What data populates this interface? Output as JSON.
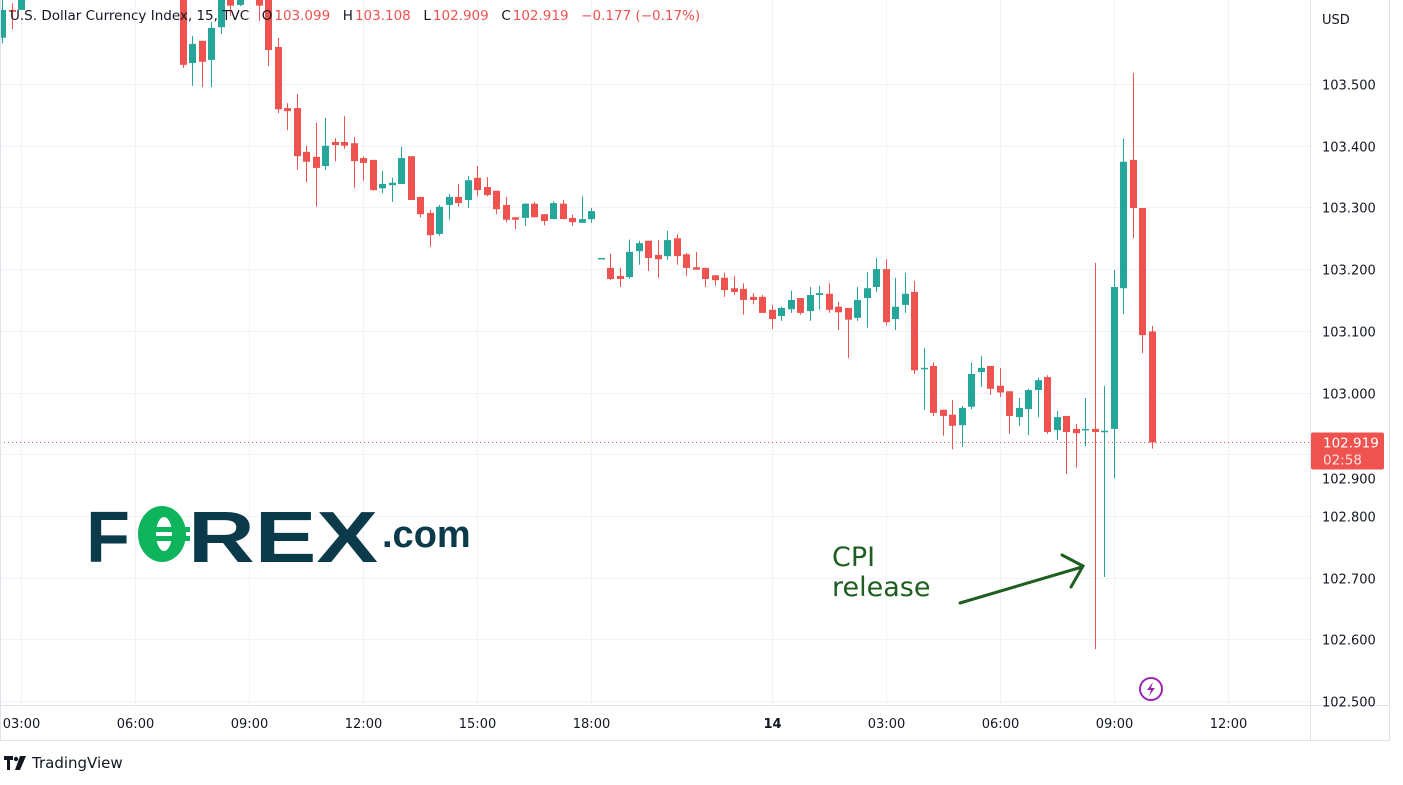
{
  "legend": {
    "symbol": "U.S. Dollar Currency Index, 15, TVC",
    "o_label": "O",
    "o": "103.099",
    "h_label": "H",
    "h": "103.108",
    "l_label": "L",
    "l": "102.909",
    "c_label": "C",
    "c": "102.919",
    "change": "−0.177 (−0.17%)"
  },
  "price_axis": {
    "currency": "USD",
    "last_price": "102.919",
    "countdown": "02:58"
  },
  "annotation": {
    "line1": "CPI",
    "line2": "release"
  },
  "logo_text": "FOREX.com",
  "attribution": "TradingView",
  "icons": {
    "event": "lightning-icon",
    "brand": "tradingview-logo-icon"
  },
  "colors": {
    "up": "#26a69a",
    "down": "#ef5350",
    "annotation": "#1e5e20",
    "logo_dark": "#0b3a4b",
    "logo_green": "#0db45c",
    "event": "#9c27b0"
  },
  "chart_data": {
    "type": "candlestick",
    "interval": "15",
    "ylim": [
      102.49,
      103.63
    ],
    "y_ticks": [
      102.5,
      102.6,
      102.7,
      102.8,
      102.9,
      103.0,
      103.1,
      103.2,
      103.3,
      103.4,
      103.5
    ],
    "x_ticks": [
      {
        "label": "03:00",
        "t": "13 03:00"
      },
      {
        "label": "06:00",
        "t": "13 06:00"
      },
      {
        "label": "09:00",
        "t": "13 09:00"
      },
      {
        "label": "12:00",
        "t": "13 12:00"
      },
      {
        "label": "15:00",
        "t": "13 15:00"
      },
      {
        "label": "18:00",
        "t": "13 18:00"
      },
      {
        "label": "14",
        "t": "14 00:00"
      },
      {
        "label": "03:00",
        "t": "14 03:00"
      },
      {
        "label": "06:00",
        "t": "14 06:00"
      },
      {
        "label": "09:00",
        "t": "14 09:00"
      },
      {
        "label": "12:00",
        "t": "14 12:00"
      }
    ],
    "grid": true,
    "last_price": 102.919,
    "event_marker_time": "14 09:45",
    "candles_fields": [
      "time",
      "open",
      "high",
      "low",
      "close"
    ],
    "candles": [
      [
        "13 02:30",
        103.575,
        103.64,
        103.566,
        103.62
      ],
      [
        "13 02:45",
        103.62,
        103.631,
        103.589,
        103.617
      ],
      [
        "13 03:00",
        103.62,
        103.66,
        103.62,
        103.65
      ],
      [
        "13 07:15",
        103.66,
        103.67,
        103.526,
        103.531
      ],
      [
        "13 07:30",
        103.534,
        103.578,
        103.497,
        103.565
      ],
      [
        "13 07:45",
        103.57,
        103.57,
        103.495,
        103.536
      ],
      [
        "13 08:00",
        103.539,
        103.6,
        103.495,
        103.591
      ],
      [
        "13 08:15",
        103.592,
        103.67,
        103.581,
        103.65
      ],
      [
        "13 08:30",
        103.66,
        103.67,
        103.61,
        103.627
      ],
      [
        "13 08:45",
        103.628,
        103.67,
        103.626,
        103.66
      ],
      [
        "13 09:15",
        103.66,
        103.67,
        103.602,
        103.627
      ],
      [
        "13 09:30",
        103.64,
        103.66,
        103.529,
        103.555
      ],
      [
        "13 09:45",
        103.56,
        103.575,
        103.453,
        103.459
      ],
      [
        "13 10:00",
        103.461,
        103.469,
        103.425,
        103.456
      ],
      [
        "13 10:15",
        103.461,
        103.484,
        103.361,
        103.383
      ],
      [
        "13 10:30",
        103.39,
        103.4,
        103.341,
        103.374
      ],
      [
        "13 10:45",
        103.382,
        103.437,
        103.301,
        103.364
      ],
      [
        "13 11:00",
        103.367,
        103.445,
        103.361,
        103.4
      ],
      [
        "13 11:15",
        103.406,
        103.412,
        103.375,
        103.401
      ],
      [
        "13 11:30",
        103.406,
        103.448,
        103.395,
        103.4
      ],
      [
        "13 11:45",
        103.404,
        103.414,
        103.331,
        103.375
      ],
      [
        "13 12:00",
        103.38,
        103.382,
        103.343,
        103.372
      ],
      [
        "13 12:15",
        103.377,
        103.377,
        103.327,
        103.328
      ],
      [
        "13 12:30",
        103.331,
        103.359,
        103.323,
        103.338
      ],
      [
        "13 12:45",
        103.336,
        103.348,
        103.309,
        103.34
      ],
      [
        "13 13:00",
        103.338,
        103.398,
        103.338,
        103.38
      ],
      [
        "13 13:15",
        103.383,
        103.383,
        103.312,
        103.312
      ],
      [
        "13 13:30",
        103.317,
        103.317,
        103.284,
        103.289
      ],
      [
        "13 13:45",
        103.291,
        103.296,
        103.236,
        103.255
      ],
      [
        "13 14:00",
        103.257,
        103.304,
        103.254,
        103.301
      ],
      [
        "13 14:15",
        103.304,
        103.322,
        103.28,
        103.317
      ],
      [
        "13 14:30",
        103.317,
        103.338,
        103.301,
        103.307
      ],
      [
        "13 14:45",
        103.312,
        103.351,
        103.299,
        103.344
      ],
      [
        "13 15:00",
        103.348,
        103.367,
        103.318,
        103.328
      ],
      [
        "13 15:15",
        103.333,
        103.349,
        103.318,
        103.32
      ],
      [
        "13 15:30",
        103.327,
        103.327,
        103.289,
        103.297
      ],
      [
        "13 15:45",
        103.304,
        103.317,
        103.276,
        103.28
      ],
      [
        "13 16:00",
        103.284,
        103.284,
        103.265,
        103.28
      ],
      [
        "13 16:15",
        103.283,
        103.307,
        103.27,
        103.306
      ],
      [
        "13 16:30",
        103.306,
        103.309,
        103.284,
        103.284
      ],
      [
        "13 16:45",
        103.289,
        103.289,
        103.271,
        103.278
      ],
      [
        "13 17:00",
        103.281,
        103.31,
        103.281,
        103.307
      ],
      [
        "13 17:15",
        103.306,
        103.312,
        103.281,
        103.281
      ],
      [
        "13 17:30",
        103.283,
        103.288,
        103.27,
        103.276
      ],
      [
        "13 17:45",
        103.275,
        103.318,
        103.275,
        103.281
      ],
      [
        "13 18:00",
        103.281,
        103.299,
        103.275,
        103.294
      ],
      [
        "13 19:30",
        103.218,
        103.218,
        103.218,
        103.218
      ],
      [
        "13 19:45",
        103.202,
        103.225,
        103.182,
        103.184
      ],
      [
        "13 20:00",
        103.189,
        103.202,
        103.171,
        103.184
      ],
      [
        "13 20:15",
        103.187,
        103.248,
        103.184,
        103.228
      ],
      [
        "13 20:30",
        103.229,
        103.246,
        103.207,
        103.242
      ],
      [
        "13 20:45",
        103.246,
        103.246,
        103.197,
        103.218
      ],
      [
        "13 21:00",
        103.223,
        103.247,
        103.186,
        103.216
      ],
      [
        "13 21:15",
        103.221,
        103.262,
        103.215,
        103.247
      ],
      [
        "13 21:30",
        103.25,
        103.257,
        103.207,
        103.221
      ],
      [
        "13 21:45",
        103.224,
        103.226,
        103.189,
        103.202
      ],
      [
        "13 22:00",
        103.203,
        103.228,
        103.199,
        103.199
      ],
      [
        "13 22:15",
        103.202,
        103.202,
        103.171,
        103.184
      ],
      [
        "13 22:30",
        103.19,
        103.19,
        103.173,
        103.182
      ],
      [
        "13 22:45",
        103.186,
        103.194,
        103.155,
        103.166
      ],
      [
        "13 23:00",
        103.169,
        103.189,
        103.158,
        103.163
      ],
      [
        "13 23:15",
        103.168,
        103.177,
        103.126,
        103.15
      ],
      [
        "13 23:30",
        103.155,
        103.161,
        103.143,
        103.15
      ],
      [
        "13 23:45",
        103.155,
        103.158,
        103.129,
        103.129
      ],
      [
        "14 00:00",
        103.134,
        103.142,
        103.103,
        103.119
      ],
      [
        "14 00:15",
        103.124,
        103.139,
        103.116,
        103.137
      ],
      [
        "14 00:30",
        103.135,
        103.165,
        103.129,
        103.15
      ],
      [
        "14 00:45",
        103.153,
        103.153,
        103.126,
        103.129
      ],
      [
        "14 01:00",
        103.132,
        103.171,
        103.116,
        103.158
      ],
      [
        "14 01:15",
        103.158,
        103.173,
        103.135,
        103.161
      ],
      [
        "14 01:30",
        103.16,
        103.177,
        103.129,
        103.134
      ],
      [
        "14 01:45",
        103.139,
        103.147,
        103.101,
        103.13
      ],
      [
        "14 02:00",
        103.137,
        103.137,
        103.056,
        103.118
      ],
      [
        "14 02:15",
        103.121,
        103.171,
        103.116,
        103.15
      ],
      [
        "14 02:30",
        103.153,
        103.195,
        103.105,
        103.169
      ],
      [
        "14 02:45",
        103.171,
        103.218,
        103.163,
        103.2
      ],
      [
        "14 03:00",
        103.2,
        103.216,
        103.109,
        103.114
      ],
      [
        "14 03:15",
        103.119,
        103.186,
        103.101,
        103.139
      ],
      [
        "14 03:30",
        103.142,
        103.194,
        103.129,
        103.16
      ],
      [
        "14 03:45",
        103.163,
        103.181,
        103.03,
        103.036
      ],
      [
        "14 04:00",
        103.039,
        103.072,
        102.972,
        103.04
      ],
      [
        "14 04:15",
        103.043,
        103.049,
        102.962,
        102.967
      ],
      [
        "14 04:30",
        102.972,
        102.972,
        102.93,
        102.962
      ],
      [
        "14 04:45",
        102.964,
        102.988,
        102.908,
        102.946
      ],
      [
        "14 05:00",
        102.947,
        102.978,
        102.912,
        102.975
      ],
      [
        "14 05:15",
        102.977,
        103.048,
        102.973,
        103.03
      ],
      [
        "14 05:30",
        103.033,
        103.059,
        103.009,
        103.04
      ],
      [
        "14 05:45",
        103.043,
        103.043,
        102.996,
        103.006
      ],
      [
        "14 06:00",
        103.011,
        103.04,
        102.993,
        103.0
      ],
      [
        "14 06:15",
        103.002,
        103.002,
        102.933,
        102.962
      ],
      [
        "14 06:30",
        102.96,
        102.991,
        102.946,
        102.975
      ],
      [
        "14 06:45",
        102.973,
        103.006,
        102.931,
        103.004
      ],
      [
        "14 07:00",
        103.004,
        103.024,
        102.96,
        103.02
      ],
      [
        "14 07:15",
        103.025,
        103.028,
        102.933,
        102.936
      ],
      [
        "14 07:30",
        102.939,
        102.97,
        102.923,
        102.96
      ],
      [
        "14 07:45",
        102.962,
        102.962,
        102.868,
        102.936
      ],
      [
        "14 08:00",
        102.941,
        102.949,
        102.878,
        102.934
      ],
      [
        "14 08:15",
        102.94,
        102.991,
        102.913,
        102.941
      ],
      [
        "14 08:30",
        102.941,
        103.21,
        102.584,
        102.936
      ],
      [
        "14 08:45",
        102.937,
        103.011,
        102.701,
        102.938
      ],
      [
        "14 09:00",
        102.941,
        103.199,
        102.861,
        103.171
      ],
      [
        "14 09:15",
        103.169,
        103.411,
        103.127,
        103.374
      ],
      [
        "14 09:30",
        103.377,
        103.518,
        103.25,
        103.299
      ],
      [
        "14 09:45",
        103.299,
        103.299,
        103.064,
        103.093
      ],
      [
        "14 10:00",
        103.099,
        103.108,
        102.909,
        102.919
      ]
    ]
  }
}
